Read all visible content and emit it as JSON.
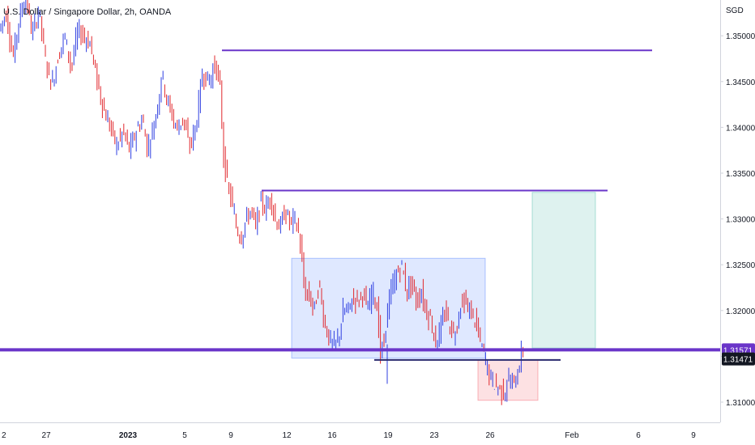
{
  "chart_data": {
    "type": "candlestick",
    "title": "U.S. Dollar / Singapore Dollar, 2h, OANDA",
    "currency": "SGD",
    "y_ticks": [
      1.31,
      1.315,
      1.32,
      1.325,
      1.33,
      1.335,
      1.34,
      1.345,
      1.35
    ],
    "y_tick_labels": [
      "1.31000",
      "1.31500",
      "1.32000",
      "1.32500",
      "1.33000",
      "1.33500",
      "1.34000",
      "1.34500",
      "1.35000"
    ],
    "x_tick_labels": [
      "2",
      "27",
      "2023",
      "5",
      "9",
      "12",
      "16",
      "19",
      "23",
      "26",
      "Feb",
      "6",
      "9"
    ],
    "price_tags": [
      {
        "value": 1.31571,
        "label": "1.31571",
        "color": "#6a35c9"
      },
      {
        "value": 1.31471,
        "label": "1.31471",
        "color": "#131722"
      }
    ],
    "colors": {
      "up": "#2f3fe0",
      "down": "#e0282e",
      "level": "#6a35c9"
    },
    "path": [
      [
        0,
        1.3505
      ],
      [
        10,
        1.3525
      ],
      [
        18,
        1.3475
      ],
      [
        26,
        1.352
      ],
      [
        34,
        1.3545
      ],
      [
        42,
        1.35
      ],
      [
        50,
        1.353
      ],
      [
        58,
        1.3475
      ],
      [
        66,
        1.3445
      ],
      [
        74,
        1.3478
      ],
      [
        82,
        1.35
      ],
      [
        90,
        1.3465
      ],
      [
        98,
        1.3505
      ],
      [
        106,
        1.35
      ],
      [
        114,
        1.349
      ],
      [
        122,
        1.345
      ],
      [
        130,
        1.342
      ],
      [
        138,
        1.34
      ],
      [
        146,
        1.338
      ],
      [
        154,
        1.3395
      ],
      [
        162,
        1.3375
      ],
      [
        170,
        1.3395
      ],
      [
        178,
        1.341
      ],
      [
        184,
        1.3375
      ],
      [
        190,
        1.3395
      ],
      [
        196,
        1.342
      ],
      [
        202,
        1.346
      ],
      [
        208,
        1.343
      ],
      [
        214,
        1.3415
      ],
      [
        220,
        1.3398
      ],
      [
        228,
        1.341
      ],
      [
        236,
        1.3378
      ],
      [
        244,
        1.3402
      ],
      [
        252,
        1.346
      ],
      [
        260,
        1.345
      ],
      [
        268,
        1.347
      ],
      [
        274,
        1.344
      ],
      [
        278,
        1.337
      ],
      [
        282,
        1.334
      ],
      [
        288,
        1.332
      ],
      [
        294,
        1.329
      ],
      [
        300,
        1.328
      ],
      [
        306,
        1.33
      ],
      [
        312,
        1.331
      ],
      [
        318,
        1.329
      ],
      [
        324,
        1.332
      ],
      [
        330,
        1.331
      ],
      [
        336,
        1.3325
      ],
      [
        342,
        1.33
      ],
      [
        348,
        1.329
      ],
      [
        354,
        1.331
      ],
      [
        360,
        1.3295
      ],
      [
        366,
        1.33
      ],
      [
        372,
        1.328
      ],
      [
        378,
        1.322
      ],
      [
        384,
        1.3215
      ],
      [
        390,
        1.32
      ],
      [
        396,
        1.323
      ],
      [
        402,
        1.319
      ],
      [
        408,
        1.317
      ],
      [
        414,
        1.316
      ],
      [
        420,
        1.317
      ],
      [
        426,
        1.32
      ],
      [
        432,
        1.32
      ],
      [
        438,
        1.3215
      ],
      [
        444,
        1.321
      ],
      [
        450,
        1.322
      ],
      [
        456,
        1.32
      ],
      [
        462,
        1.3225
      ],
      [
        468,
        1.32
      ],
      [
        472,
        1.315
      ],
      [
        476,
        1.3165
      ],
      [
        480,
        1.32
      ],
      [
        486,
        1.3225
      ],
      [
        492,
        1.324
      ],
      [
        498,
        1.325
      ],
      [
        504,
        1.322
      ],
      [
        510,
        1.323
      ],
      [
        516,
        1.321
      ],
      [
        522,
        1.322
      ],
      [
        528,
        1.32
      ],
      [
        534,
        1.319
      ],
      [
        540,
        1.3165
      ],
      [
        546,
        1.318
      ],
      [
        552,
        1.32
      ],
      [
        558,
        1.318
      ],
      [
        564,
        1.3175
      ],
      [
        570,
        1.3205
      ],
      [
        576,
        1.321
      ],
      [
        582,
        1.32
      ],
      [
        588,
        1.319
      ],
      [
        594,
        1.317
      ],
      [
        600,
        1.315
      ],
      [
        606,
        1.313
      ],
      [
        612,
        1.312
      ],
      [
        618,
        1.3115
      ],
      [
        624,
        1.311
      ],
      [
        630,
        1.3125
      ],
      [
        636,
        1.312
      ],
      [
        642,
        1.3135
      ],
      [
        646,
        1.3155
      ]
    ],
    "annotations": [
      {
        "type": "hline",
        "y": 1.3484,
        "x_from": 274,
        "x_to": 805
      },
      {
        "type": "hline",
        "y": 1.3331,
        "x_from": 323,
        "x_to": 750
      },
      {
        "type": "hline",
        "y": 1.3146,
        "x_from": 462,
        "x_to": 692
      },
      {
        "type": "hline_thick",
        "y": 1.31571,
        "x_from": 0,
        "x_to": 889
      },
      {
        "type": "box",
        "color": "#2962ff",
        "x_from": 360,
        "x_to": 599,
        "y_top": 1.3257,
        "y_bottom": 1.3148
      },
      {
        "type": "box",
        "color": "#f23645",
        "x_from": 590,
        "x_to": 664,
        "y_top": 1.3146,
        "y_bottom": 1.3102
      },
      {
        "type": "box",
        "color": "#22ab94",
        "x_from": 657,
        "x_to": 735,
        "y_top": 1.3329,
        "y_bottom": 1.3159
      }
    ]
  }
}
